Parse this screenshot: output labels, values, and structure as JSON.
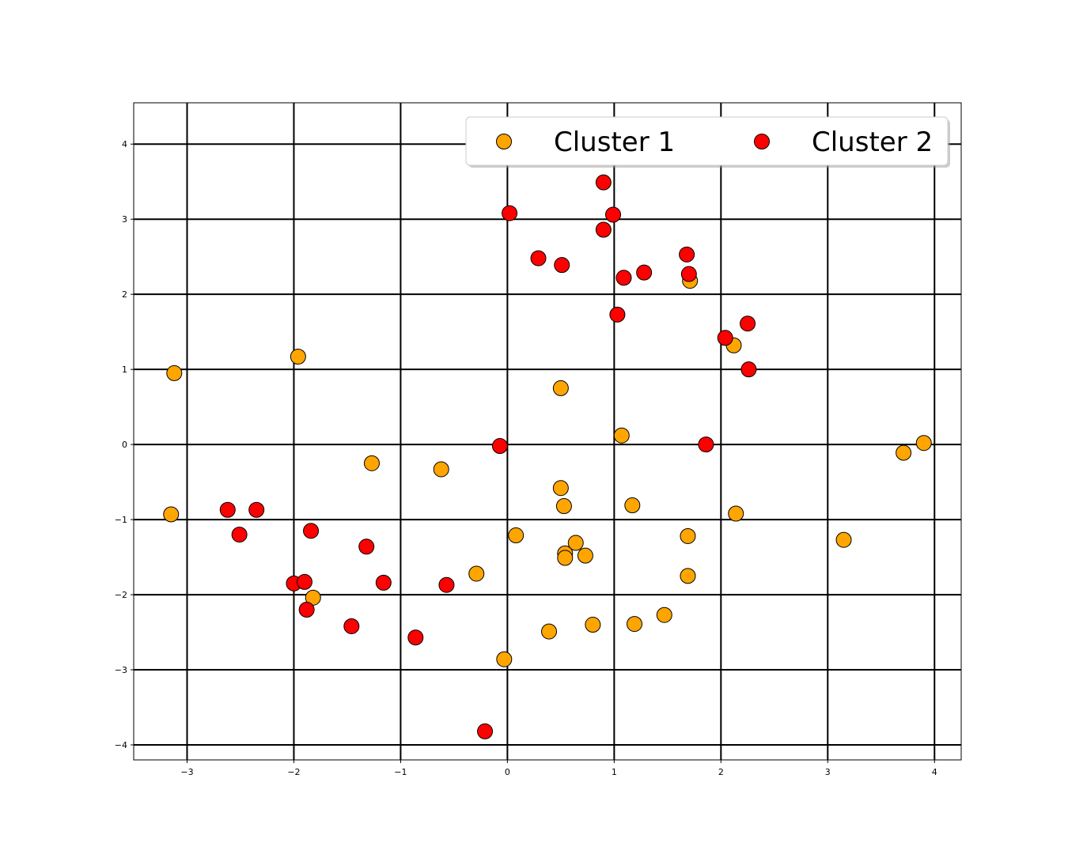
{
  "chart_data": {
    "type": "scatter",
    "title": "",
    "xlabel": "",
    "ylabel": "",
    "xlim": [
      -3.5,
      4.25
    ],
    "ylim": [
      -4.2,
      4.55
    ],
    "xticks": [
      -3,
      -2,
      -1,
      0,
      1,
      2,
      3,
      4
    ],
    "yticks": [
      -4,
      -3,
      -2,
      -1,
      0,
      1,
      2,
      3,
      4
    ],
    "xtick_labels": [
      "−3",
      "−2",
      "−1",
      "0",
      "1",
      "2",
      "3",
      "4"
    ],
    "ytick_labels": [
      "−4",
      "−3",
      "−2",
      "−1",
      "0",
      "1",
      "2",
      "3",
      "4"
    ],
    "grid": true,
    "legend": {
      "placement": "upper-right",
      "columns": 2
    },
    "series": [
      {
        "name": "Cluster 1",
        "color": "#ffa500",
        "points": [
          [
            -3.12,
            0.95
          ],
          [
            -1.96,
            1.17
          ],
          [
            -3.15,
            -0.93
          ],
          [
            -1.27,
            -0.25
          ],
          [
            -0.62,
            -0.33
          ],
          [
            0.5,
            0.75
          ],
          [
            1.07,
            0.12
          ],
          [
            1.71,
            2.18
          ],
          [
            2.12,
            1.32
          ],
          [
            3.71,
            -0.11
          ],
          [
            3.9,
            0.02
          ],
          [
            0.5,
            -0.58
          ],
          [
            0.53,
            -0.82
          ],
          [
            1.17,
            -0.81
          ],
          [
            2.14,
            -0.92
          ],
          [
            0.08,
            -1.21
          ],
          [
            0.64,
            -1.31
          ],
          [
            0.54,
            -1.45
          ],
          [
            0.54,
            -1.51
          ],
          [
            0.73,
            -1.48
          ],
          [
            -0.29,
            -1.72
          ],
          [
            1.69,
            -1.22
          ],
          [
            1.69,
            -1.75
          ],
          [
            3.15,
            -1.27
          ],
          [
            -1.82,
            -2.04
          ],
          [
            0.39,
            -2.49
          ],
          [
            0.8,
            -2.4
          ],
          [
            1.19,
            -2.39
          ],
          [
            1.47,
            -2.27
          ],
          [
            -0.03,
            -2.86
          ]
        ]
      },
      {
        "name": "Cluster 2",
        "color": "#ff0000",
        "points": [
          [
            0.9,
            3.49
          ],
          [
            0.99,
            3.06
          ],
          [
            0.9,
            2.86
          ],
          [
            0.02,
            3.08
          ],
          [
            0.29,
            2.48
          ],
          [
            0.51,
            2.39
          ],
          [
            1.09,
            2.22
          ],
          [
            1.28,
            2.29
          ],
          [
            1.68,
            2.53
          ],
          [
            1.7,
            2.27
          ],
          [
            1.03,
            1.73
          ],
          [
            2.04,
            1.42
          ],
          [
            2.25,
            1.61
          ],
          [
            2.26,
            1.0
          ],
          [
            -0.07,
            -0.02
          ],
          [
            1.86,
            0.0
          ],
          [
            -2.62,
            -0.87
          ],
          [
            -2.35,
            -0.87
          ],
          [
            -2.51,
            -1.2
          ],
          [
            -1.84,
            -1.15
          ],
          [
            -1.32,
            -1.36
          ],
          [
            -2.0,
            -1.85
          ],
          [
            -1.9,
            -1.83
          ],
          [
            -1.88,
            -2.2
          ],
          [
            -1.16,
            -1.84
          ],
          [
            -0.57,
            -1.87
          ],
          [
            -1.46,
            -2.42
          ],
          [
            -0.86,
            -2.57
          ],
          [
            -0.21,
            -3.82
          ]
        ]
      }
    ]
  }
}
